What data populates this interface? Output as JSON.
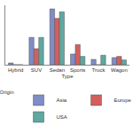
{
  "chart_data": {
    "type": "bar",
    "x_label": "Type",
    "legend_title": "Origin",
    "categories": [
      "Hybrid",
      "SUV",
      "Sedan",
      "Sports",
      "Truck",
      "Wagon"
    ],
    "series": [
      {
        "name": "Asia",
        "color": "#7e8cc8",
        "values": [
          3,
          46,
          94,
          18,
          9,
          12
        ]
      },
      {
        "name": "Europe",
        "color": "#d35f5f",
        "values": [
          0,
          27,
          78,
          34,
          0,
          14
        ]
      },
      {
        "name": "USA",
        "color": "#5ea8a0",
        "values": [
          0,
          46,
          89,
          14,
          16,
          8
        ]
      }
    ],
    "ylim": [
      0,
      100
    ],
    "tick_labels": "x",
    "legend": "bottom",
    "grid": false
  }
}
